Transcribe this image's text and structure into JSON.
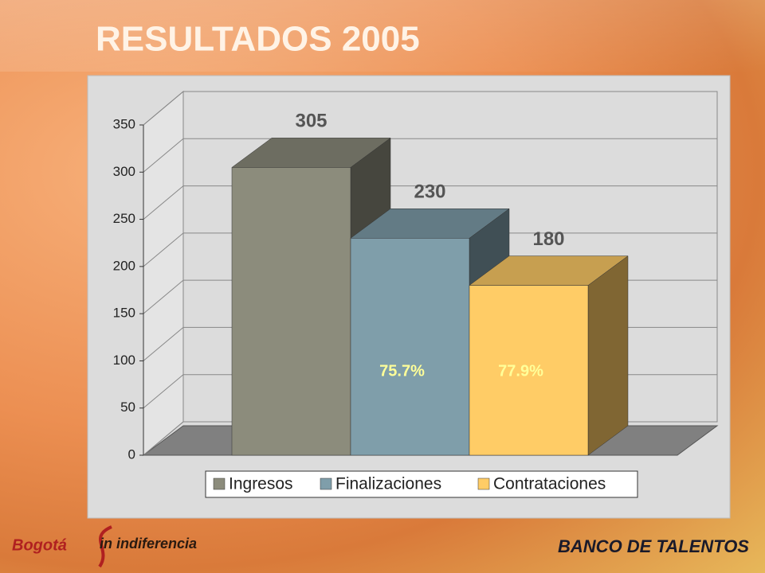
{
  "chart_data": {
    "type": "bar",
    "title": "RESULTADOS 2005",
    "categories": [
      null
    ],
    "series": [
      {
        "name": "Ingresos",
        "color": "#8c8c7c",
        "values": [
          305
        ]
      },
      {
        "name": "Finalizaciones",
        "color": "#7f9eaa",
        "values": [
          230
        ]
      },
      {
        "name": "Contrataciones",
        "color": "#ffcc66",
        "values": [
          180
        ]
      }
    ],
    "annotations": [
      "75.7%",
      "77.9%"
    ],
    "ylim": [
      0,
      350
    ],
    "yticks": [
      0,
      50,
      100,
      150,
      200,
      250,
      300,
      350
    ],
    "grid": true,
    "legend": "bottom"
  },
  "footer": {
    "logo_left": "Bogotá",
    "logo_right": "in indiferencia",
    "brand": "BANCO DE TALENTOS"
  }
}
